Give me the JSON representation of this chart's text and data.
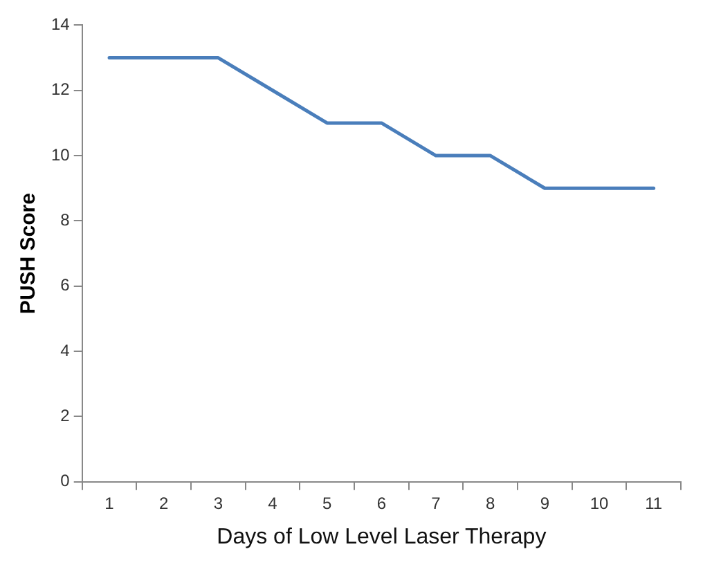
{
  "chart_data": {
    "type": "line",
    "xlabel": "Days of Low Level Laser Therapy",
    "ylabel": "PUSH Score",
    "categories": [
      "1",
      "2",
      "3",
      "4",
      "5",
      "6",
      "7",
      "8",
      "9",
      "10",
      "11"
    ],
    "series": [
      {
        "color": "#4a7ebb",
        "values": [
          13,
          13,
          13,
          12,
          11,
          11,
          10,
          10,
          9,
          9,
          9
        ]
      }
    ],
    "ylim": [
      0,
      14
    ],
    "yticks": [
      0,
      2,
      4,
      6,
      8,
      10,
      12,
      14
    ],
    "grid": false,
    "legend": false,
    "marker": "none",
    "line_style": "solid"
  }
}
